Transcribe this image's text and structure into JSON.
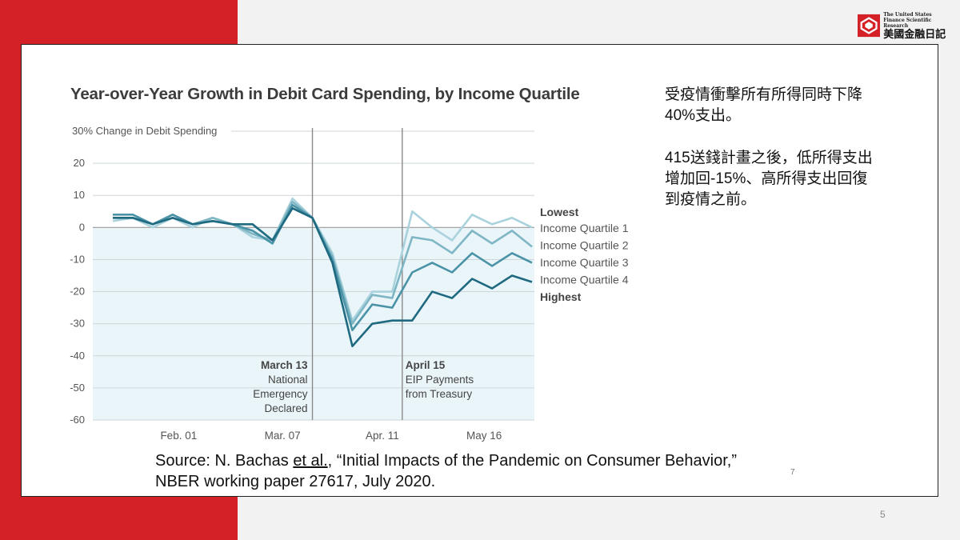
{
  "logo": {
    "en_line1": "The United States",
    "en_line2": "Finance Scientific Research",
    "zh": "美國金融日記"
  },
  "notes": {
    "note1": "受疫情衝擊所有所得同時下降40%支出。",
    "note2": "415送錢計畫之後，低所得支出增加回-15%、高所得支出回復到疫情之前。"
  },
  "source": {
    "line1_prefix": "Source: N. Bachas ",
    "line1_link": "et al.",
    "line1_suffix": ", “Initial Impacts of the Pandemic on Consumer Behavior,”",
    "line2": "NBER working paper 27617, July 2020.",
    "slide_ref": "7"
  },
  "page_number": "5",
  "colors": {
    "red": "#d42027",
    "q1": "#a9d2dc",
    "q2": "#7fb6c4",
    "q3": "#4a93a6",
    "q4": "#1f6a80",
    "shade": "#eaf5fa"
  },
  "chart_data": {
    "type": "line",
    "title": "Year-over-Year Growth in Debit Card Spending, by Income Quartile",
    "ylabel": "30% Change in Debit Spending",
    "ylim": [
      -60,
      30
    ],
    "yticks": [
      20,
      10,
      0,
      -10,
      -20,
      -30,
      -40,
      -50,
      -60
    ],
    "xlim": [
      0,
      22
    ],
    "x_tick_labels": [
      {
        "x": 3.3,
        "label": "Feb. 01"
      },
      {
        "x": 8.5,
        "label": "Mar. 07"
      },
      {
        "x": 13.5,
        "label": "Apr. 11"
      },
      {
        "x": 18.6,
        "label": "May 16"
      }
    ],
    "x": [
      0,
      1,
      2,
      3,
      4,
      5,
      6,
      7,
      8,
      9,
      10,
      11,
      12,
      13,
      14,
      15,
      16,
      17,
      18,
      19,
      20,
      21
    ],
    "series": [
      {
        "name": "Income Quartile 1",
        "values": [
          2,
          3,
          0,
          3,
          0,
          3,
          1,
          -3,
          -4,
          9,
          3,
          -8,
          -29,
          -20,
          -20,
          5,
          0,
          -4,
          4,
          1,
          3,
          0
        ]
      },
      {
        "name": "Income Quartile 2",
        "values": [
          3,
          3,
          1,
          4,
          1,
          3,
          1,
          -2,
          -4,
          8,
          3,
          -9,
          -30,
          -21,
          -22,
          -3,
          -4,
          -8,
          -1,
          -5,
          -1,
          -6
        ]
      },
      {
        "name": "Income Quartile 3",
        "values": [
          4,
          4,
          1,
          4,
          1,
          2,
          1,
          -1,
          -5,
          7,
          3,
          -10,
          -32,
          -24,
          -25,
          -14,
          -11,
          -14,
          -8,
          -12,
          -8,
          -11
        ]
      },
      {
        "name": "Income Quartile 4",
        "values": [
          3,
          3,
          1,
          3,
          1,
          2,
          1,
          1,
          -4,
          6,
          3,
          -11,
          -37,
          -30,
          -29,
          -29,
          -20,
          -22,
          -16,
          -19,
          -15,
          -17
        ]
      }
    ],
    "legend_top": "Lowest",
    "legend_bottom": "Highest",
    "annotations": [
      {
        "x": 10,
        "lines": [
          "March 13",
          "National",
          "Emergency",
          "Declared"
        ],
        "align": "right"
      },
      {
        "x": 14.5,
        "lines": [
          "April 15",
          "EIP Payments",
          "from Treasury"
        ],
        "align": "left"
      }
    ]
  }
}
